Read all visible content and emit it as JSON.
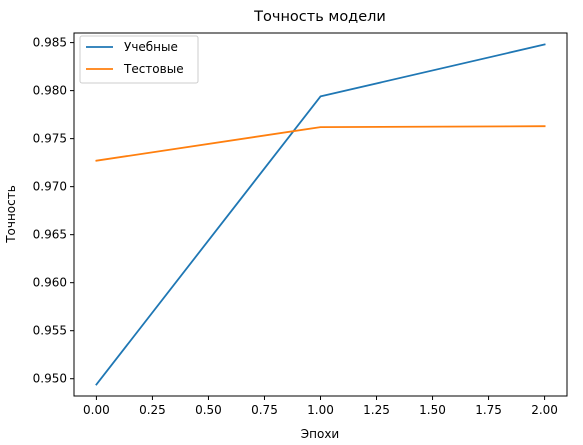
{
  "chart_data": {
    "type": "line",
    "title": "Точность модели",
    "xlabel": "Эпохи",
    "ylabel": "Точность",
    "xlim": [
      -0.1,
      2.1
    ],
    "ylim": [
      0.9482,
      0.986
    ],
    "xticks": [
      "0.00",
      "0.25",
      "0.50",
      "0.75",
      "1.00",
      "1.25",
      "1.50",
      "1.75",
      "2.00"
    ],
    "yticks": [
      "0.950",
      "0.955",
      "0.960",
      "0.965",
      "0.970",
      "0.975",
      "0.980",
      "0.985"
    ],
    "legend_position": "top-left",
    "grid": false,
    "x": [
      0,
      1,
      2
    ],
    "series": [
      {
        "name": "Учебные",
        "color": "#1f77b4",
        "values": [
          0.9494,
          0.9794,
          0.9848
        ]
      },
      {
        "name": "Тестовые",
        "color": "#ff7f0e",
        "values": [
          0.9727,
          0.9762,
          0.9763
        ]
      }
    ]
  }
}
